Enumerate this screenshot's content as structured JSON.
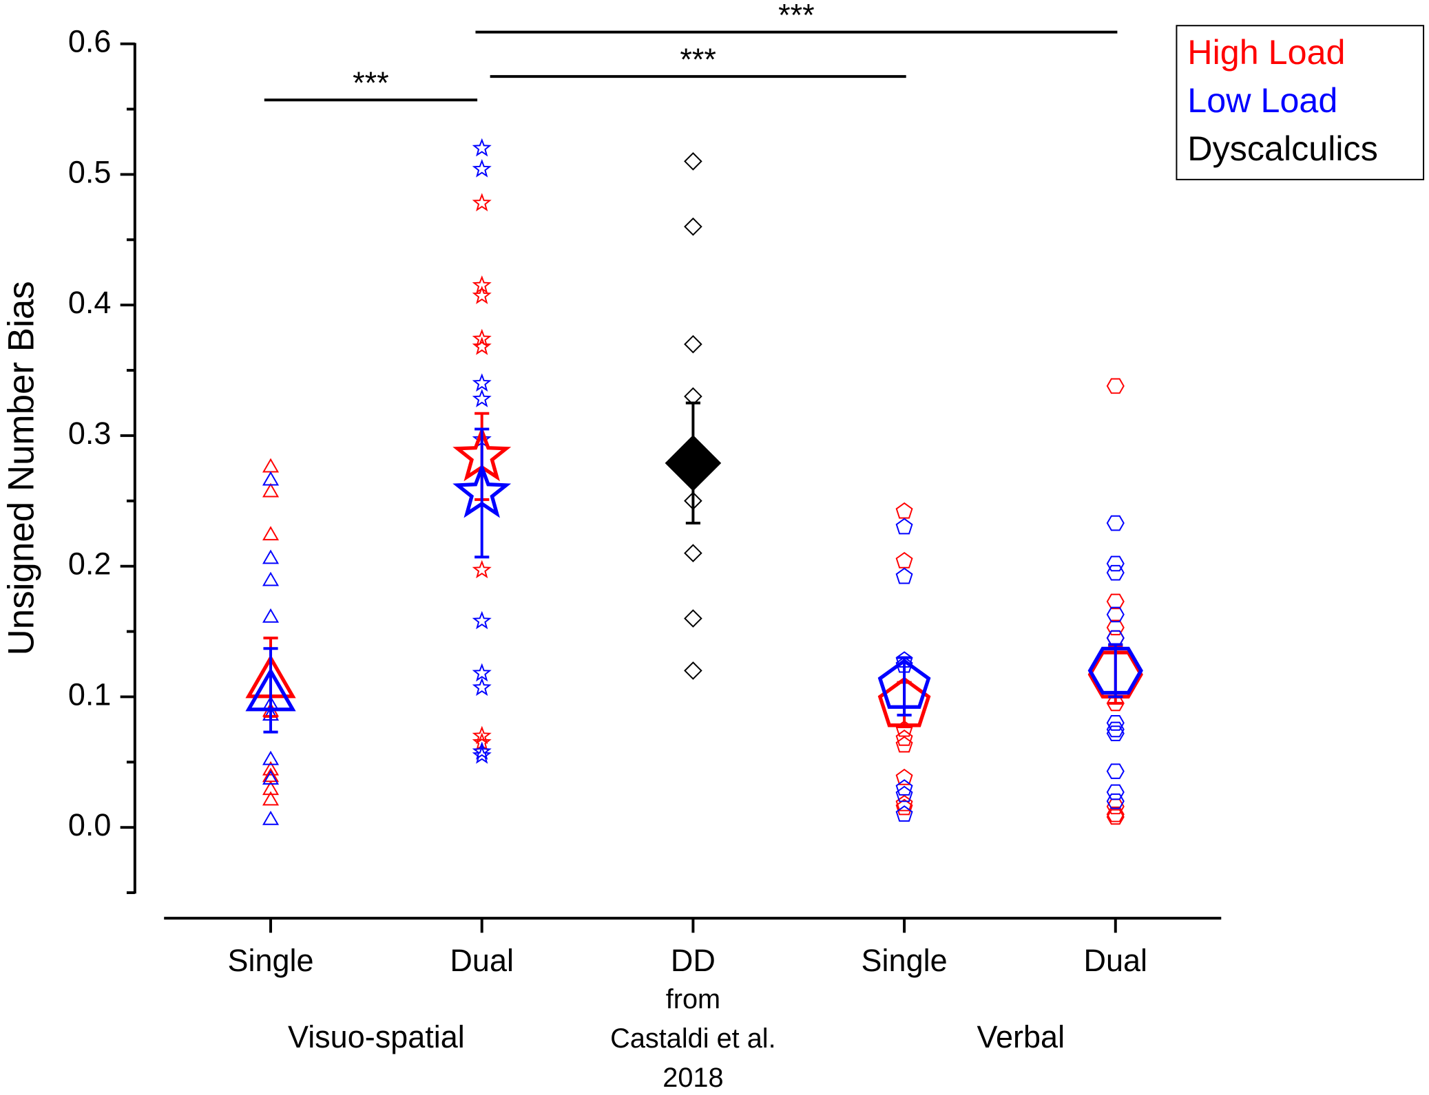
{
  "chart_data": {
    "type": "dot",
    "ylabel": "Unsigned Number Bias",
    "categories": [
      "Single",
      "Dual",
      "DD",
      "Single",
      "Dual"
    ],
    "category_sublabels": [
      null,
      null,
      [
        "from",
        "Castaldi et al.",
        "2018"
      ],
      null,
      null
    ],
    "groups": [
      {
        "label": "Visuo-spatial",
        "categories": [
          0,
          1
        ]
      },
      {
        "label": "Verbal",
        "categories": [
          3,
          4
        ]
      }
    ],
    "markers": [
      "triangle",
      "star",
      "diamond",
      "pentagon",
      "hexagon"
    ],
    "ylim": [
      -0.05,
      0.6
    ],
    "yticks": [
      {
        "value": 0,
        "label": "0.0"
      },
      0.1,
      0.2,
      0.3,
      0.4,
      0.5,
      0.6
    ],
    "minor_yticks": [
      -0.05,
      0.05,
      0.15,
      0.25,
      0.35,
      0.45,
      0.55
    ],
    "legend": "upper right",
    "series": [
      {
        "name": "High Load",
        "color": "#ff0000",
        "filled": false,
        "points": [
          [
            0.277,
            0.258,
            0.225,
            0.09,
            0.045,
            0.04,
            0.03,
            0.022
          ],
          [
            0.478,
            0.415,
            0.407,
            0.374,
            0.368,
            0.197,
            0.07,
            0.065
          ],
          null,
          [
            0.242,
            0.204,
            0.075,
            0.068,
            0.063,
            0.038,
            0.018,
            0.015
          ],
          [
            0.338,
            0.173,
            0.153,
            0.145,
            0.095,
            0.016,
            0.01,
            0.008
          ]
        ],
        "means": [
          0.115,
          0.284,
          null,
          0.094,
          0.117
        ],
        "errors": [
          0.03,
          0.033,
          null,
          0.017,
          0.022
        ]
      },
      {
        "name": "Low Load",
        "color": "#0000ff",
        "filled": false,
        "points": [
          [
            0.267,
            0.207,
            0.19,
            0.162,
            0.095,
            0.087,
            0.053,
            0.038,
            0.007
          ],
          [
            0.52,
            0.504,
            0.34,
            0.328,
            0.297,
            0.158,
            0.118,
            0.107,
            0.058,
            0.055
          ],
          null,
          [
            0.23,
            0.192,
            0.128,
            0.124,
            0.03,
            0.025,
            0.01
          ],
          [
            0.233,
            0.202,
            0.195,
            0.163,
            0.145,
            0.08,
            0.075,
            0.072,
            0.043,
            0.027,
            0.02
          ]
        ],
        "means": [
          0.105,
          0.256,
          null,
          0.108,
          0.12
        ],
        "errors": [
          0.032,
          0.049,
          null,
          0.022,
          0.02
        ]
      },
      {
        "name": "Dyscalculics",
        "color": "#000000",
        "filled": true,
        "points": [
          null,
          null,
          [
            0.51,
            0.46,
            0.37,
            0.33,
            0.25,
            0.21,
            0.16,
            0.12
          ],
          null,
          null
        ],
        "means": [
          null,
          null,
          0.279,
          null,
          null
        ],
        "errors": [
          null,
          null,
          0.046,
          null,
          null
        ]
      }
    ],
    "annotations": [
      {
        "text": "***",
        "from": 0,
        "to": 1,
        "y": 0.557
      },
      {
        "text": "***",
        "from": 1,
        "to": 3,
        "y": 0.575
      },
      {
        "text": "***",
        "from": 1,
        "to": 4,
        "y": 0.609
      }
    ]
  }
}
